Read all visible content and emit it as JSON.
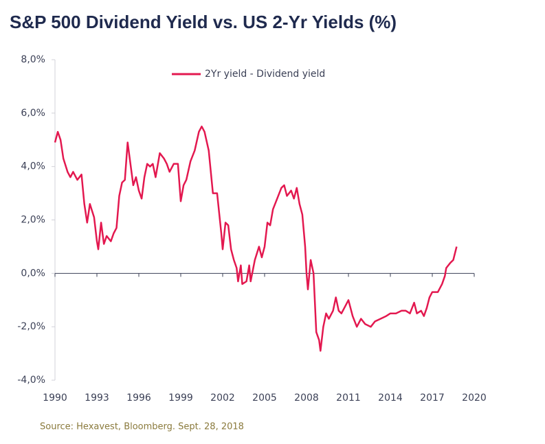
{
  "chart_data": {
    "type": "line",
    "title": "S&P 500 Dividend Yield vs. US 2-Yr Yields (%)",
    "source": "Source: Hexavest, Bloomberg. Sept. 28, 2018",
    "legend": "top",
    "xlim": [
      1990,
      2020
    ],
    "xticks": [
      1990,
      1993,
      1996,
      1999,
      2002,
      2005,
      2008,
      2011,
      2014,
      2017,
      2020
    ],
    "ylim": [
      -4,
      8
    ],
    "yticks": [
      {
        "value": -4,
        "label": "-4,0%"
      },
      {
        "value": -2,
        "label": "-2,0%"
      },
      {
        "value": 0,
        "label": "0,0%"
      },
      {
        "value": 2,
        "label": "2,0%"
      },
      {
        "value": 4,
        "label": "4,0%"
      },
      {
        "value": 6,
        "label": "6,0%"
      },
      {
        "value": 8,
        "label": "8,0%"
      }
    ],
    "x": [
      1990.0,
      1990.2,
      1990.4,
      1990.6,
      1990.9,
      1991.1,
      1991.3,
      1991.6,
      1991.9,
      1992.1,
      1992.3,
      1992.5,
      1992.8,
      1993.0,
      1993.1,
      1993.3,
      1993.5,
      1993.7,
      1994.0,
      1994.2,
      1994.4,
      1994.6,
      1994.8,
      1995.0,
      1995.2,
      1995.4,
      1995.6,
      1995.8,
      1996.0,
      1996.2,
      1996.4,
      1996.6,
      1996.8,
      1997.0,
      1997.2,
      1997.5,
      1997.8,
      1998.0,
      1998.2,
      1998.5,
      1998.8,
      1999.0,
      1999.2,
      1999.4,
      1999.7,
      2000.0,
      2000.3,
      2000.5,
      2000.7,
      2001.0,
      2001.3,
      2001.6,
      2001.9,
      2002.0,
      2002.2,
      2002.4,
      2002.6,
      2002.8,
      2003.0,
      2003.1,
      2003.3,
      2003.4,
      2003.7,
      2003.9,
      2004.0,
      2004.3,
      2004.6,
      2004.8,
      2005.0,
      2005.2,
      2005.4,
      2005.6,
      2005.9,
      2006.2,
      2006.4,
      2006.6,
      2006.9,
      2007.1,
      2007.3,
      2007.5,
      2007.7,
      2007.9,
      2008.0,
      2008.1,
      2008.3,
      2008.5,
      2008.7,
      2008.9,
      2009.0,
      2009.2,
      2009.4,
      2009.6,
      2009.9,
      2010.1,
      2010.3,
      2010.5,
      2010.7,
      2011.0,
      2011.3,
      2011.6,
      2011.9,
      2012.2,
      2012.6,
      2012.9,
      2013.3,
      2013.7,
      2014.0,
      2014.4,
      2014.8,
      2015.1,
      2015.4,
      2015.7,
      2015.9,
      2016.2,
      2016.4,
      2016.6,
      2016.8,
      2017.0,
      2017.4,
      2017.7,
      2017.9,
      2018.0,
      2018.3,
      2018.5,
      2018.74
    ],
    "series": [
      {
        "name": "2Yr yield - Dividend yield",
        "color": "#e3184f",
        "values": [
          4.9,
          5.3,
          5.0,
          4.3,
          3.8,
          3.6,
          3.8,
          3.5,
          3.7,
          2.6,
          1.9,
          2.6,
          2.1,
          1.2,
          0.9,
          1.9,
          1.1,
          1.4,
          1.2,
          1.5,
          1.7,
          2.9,
          3.4,
          3.5,
          4.9,
          4.1,
          3.3,
          3.6,
          3.1,
          2.8,
          3.6,
          4.1,
          4.0,
          4.1,
          3.6,
          4.5,
          4.3,
          4.1,
          3.8,
          4.1,
          4.1,
          2.7,
          3.3,
          3.5,
          4.2,
          4.6,
          5.3,
          5.5,
          5.3,
          4.6,
          3.0,
          3.0,
          1.5,
          0.9,
          1.9,
          1.8,
          0.9,
          0.5,
          0.2,
          -0.3,
          0.3,
          -0.4,
          -0.3,
          0.3,
          -0.3,
          0.5,
          1.0,
          0.6,
          1.0,
          1.9,
          1.8,
          2.4,
          2.8,
          3.2,
          3.3,
          2.9,
          3.1,
          2.8,
          3.2,
          2.6,
          2.2,
          1.0,
          0.0,
          -0.6,
          0.5,
          0.0,
          -2.2,
          -2.5,
          -2.9,
          -2.0,
          -1.5,
          -1.7,
          -1.4,
          -0.9,
          -1.4,
          -1.5,
          -1.3,
          -1.0,
          -1.6,
          -2.0,
          -1.7,
          -1.9,
          -2.0,
          -1.8,
          -1.7,
          -1.6,
          -1.5,
          -1.5,
          -1.4,
          -1.4,
          -1.5,
          -1.1,
          -1.5,
          -1.4,
          -1.6,
          -1.3,
          -0.9,
          -0.7,
          -0.7,
          -0.4,
          -0.1,
          0.2,
          0.4,
          0.5,
          1.0
        ]
      }
    ]
  }
}
